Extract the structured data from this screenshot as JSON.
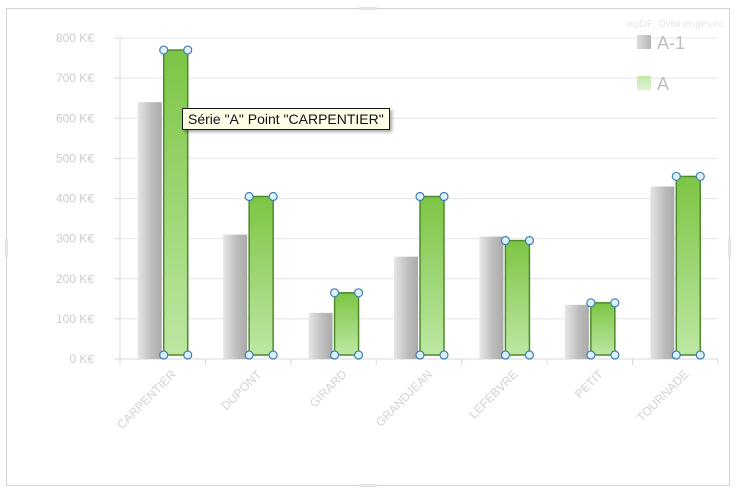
{
  "watermark": "wpDF_Dvbinenges.ru",
  "tooltip": "Série \"A\" Point \"CARPENTIER\"",
  "colors": {
    "series_prev": "#b8b8b8",
    "series_curr": "#8ccd56",
    "selection_border": "#4e8a2c",
    "handle_fill": "#dff0fb",
    "handle_stroke": "#3b7fb0",
    "gridline": "#e4e4e4"
  },
  "chart_data": {
    "type": "bar",
    "categories": [
      "CARPENTIER",
      "DUPONT",
      "GIRARD",
      "GRANDJEAN",
      "LEFEBVRE",
      "PETIT",
      "TOURNADE"
    ],
    "series": [
      {
        "name": "A-1",
        "values": [
          640,
          310,
          115,
          255,
          305,
          135,
          430
        ]
      },
      {
        "name": "A",
        "values": [
          770,
          405,
          165,
          405,
          295,
          140,
          455
        ]
      }
    ],
    "yticks": [
      "0 K€",
      "100 K€",
      "200 K€",
      "300 K€",
      "400 K€",
      "500 K€",
      "600 K€",
      "700 K€",
      "800 K€"
    ],
    "ylim": [
      0,
      800
    ],
    "grid": true,
    "legend": "top-right",
    "selected_series": "A",
    "title": "",
    "xlabel": "",
    "ylabel": ""
  }
}
